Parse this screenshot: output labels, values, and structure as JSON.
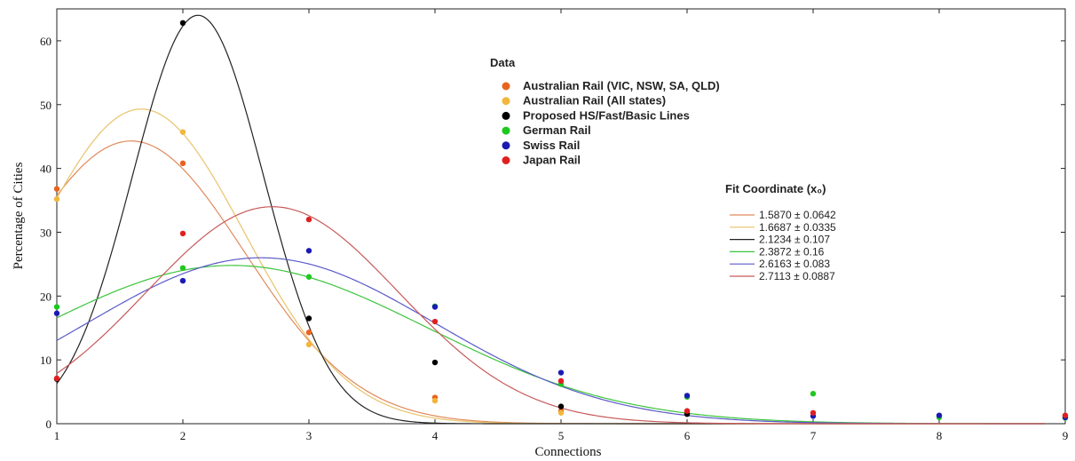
{
  "chart_data": {
    "type": "scatter",
    "xlabel": "Connections",
    "ylabel": "Percentage of Cities",
    "xlim": [
      1,
      9
    ],
    "ylim": [
      0,
      65
    ],
    "xticks": [
      "1",
      "2",
      "3",
      "4",
      "5",
      "6",
      "7",
      "8",
      "9"
    ],
    "yticks": [
      "0",
      "10",
      "20",
      "30",
      "40",
      "50",
      "60"
    ],
    "legend_title": "Data",
    "fit_title": "Fit Coordinate (x₀)",
    "series": [
      {
        "name": "Australian Rail (VIC, NSW, SA, QLD)",
        "color": "#e8641e",
        "fit_color": "#e08a5c",
        "fit_label": "1.5870 ± 0.0642",
        "fit": {
          "amp": 44.3,
          "mu": 1.59,
          "sigma": 0.9
        },
        "points": [
          [
            1,
            36.8
          ],
          [
            2,
            40.8
          ],
          [
            3,
            14.3
          ],
          [
            4,
            4.1
          ],
          [
            5,
            2.0
          ],
          [
            6,
            1.9
          ]
        ]
      },
      {
        "name": "Australian Rail (All states)",
        "color": "#f2b63c",
        "fit_color": "#e8c46a",
        "fit_label": "1.6687 ± 0.0335",
        "fit": {
          "amp": 49.3,
          "mu": 1.67,
          "sigma": 0.82
        },
        "points": [
          [
            1,
            35.2
          ],
          [
            2,
            45.7
          ],
          [
            3,
            12.4
          ],
          [
            4,
            3.6
          ],
          [
            5,
            1.7
          ]
        ]
      },
      {
        "name": "Proposed HS/Fast/Basic Lines",
        "color": "#000000",
        "fit_color": "#222222",
        "fit_label": "2.1234 ± 0.107",
        "fit": {
          "amp": 64.0,
          "mu": 2.12,
          "sigma": 0.52
        },
        "points": [
          [
            1,
            7.0
          ],
          [
            2,
            62.8
          ],
          [
            3,
            16.5
          ],
          [
            4,
            9.6
          ],
          [
            5,
            2.7
          ],
          [
            6,
            1.5
          ]
        ]
      },
      {
        "name": "German Rail",
        "color": "#1ec81e",
        "fit_color": "#3cc43c",
        "fit_label": "2.3872 ± 0.16",
        "fit": {
          "amp": 24.8,
          "mu": 2.39,
          "sigma": 1.55
        },
        "points": [
          [
            1,
            18.3
          ],
          [
            2,
            24.4
          ],
          [
            3,
            23.0
          ],
          [
            4,
            18.4
          ],
          [
            5,
            6.2
          ],
          [
            6,
            4.2
          ],
          [
            7,
            4.7
          ],
          [
            8,
            1.0
          ],
          [
            9,
            0.9
          ]
        ]
      },
      {
        "name": "Swiss Rail",
        "color": "#1a1ab4",
        "fit_color": "#5a5ac8",
        "fit_label": "2.6163 ± 0.083",
        "fit": {
          "amp": 26.0,
          "mu": 2.62,
          "sigma": 1.38
        },
        "points": [
          [
            1,
            17.3
          ],
          [
            2,
            22.4
          ],
          [
            3,
            27.1
          ],
          [
            4,
            18.3
          ],
          [
            5,
            8.0
          ],
          [
            6,
            4.4
          ],
          [
            7,
            1.2
          ],
          [
            8,
            1.3
          ],
          [
            9,
            1.0
          ]
        ]
      },
      {
        "name": "Japan Rail",
        "color": "#e02020",
        "fit_color": "#c85a5a",
        "fit_label": "2.7113 ± 0.0887",
        "fit": {
          "amp": 34.0,
          "mu": 2.71,
          "sigma": 1.0
        },
        "points": [
          [
            1,
            7.1
          ],
          [
            2,
            29.8
          ],
          [
            3,
            32.0
          ],
          [
            4,
            16.0
          ],
          [
            5,
            6.7
          ],
          [
            6,
            2.0
          ],
          [
            7,
            1.7
          ],
          [
            9,
            1.3
          ]
        ]
      }
    ]
  }
}
